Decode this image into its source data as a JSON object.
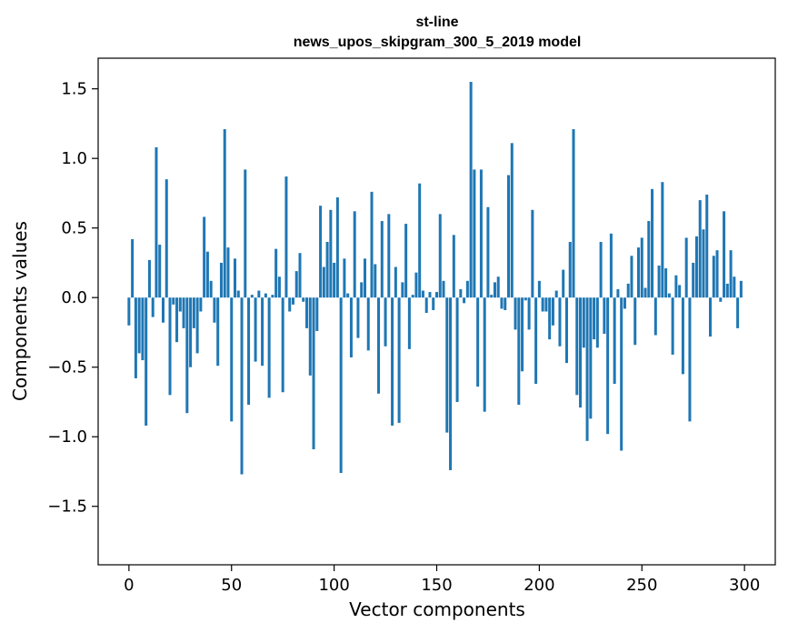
{
  "chart_data": {
    "type": "bar",
    "title_line1": "st-line",
    "title_line2": "news_upos_skipgram_300_5_2019 model",
    "xlabel": "Vector components",
    "ylabel": "Components values",
    "xlim": [
      -15,
      315
    ],
    "ylim": [
      -1.92,
      1.72
    ],
    "xticks": [
      0,
      50,
      100,
      150,
      200,
      250,
      300
    ],
    "yticks": [
      -1.5,
      -1.0,
      -0.5,
      0.0,
      0.5,
      1.0,
      1.5
    ],
    "xtick_labels": [
      "0",
      "50",
      "100",
      "150",
      "200",
      "250",
      "300"
    ],
    "ytick_labels": [
      "−1.5",
      "−1.0",
      "−0.5",
      "0.0",
      "0.5",
      "1.0",
      "1.5"
    ],
    "bar_color": "#1f77b4",
    "grid": false,
    "values": [
      -0.2,
      0.42,
      -0.58,
      -0.4,
      -0.45,
      -0.92,
      0.27,
      -0.14,
      1.08,
      0.38,
      -0.18,
      0.85,
      -0.7,
      -0.05,
      -0.32,
      -0.1,
      -0.22,
      -0.83,
      -0.5,
      -0.22,
      -0.4,
      -0.1,
      0.58,
      0.33,
      0.12,
      -0.18,
      -0.49,
      0.25,
      1.21,
      0.36,
      -0.89,
      0.28,
      0.05,
      -1.27,
      0.92,
      -0.77,
      0.02,
      -0.46,
      0.05,
      -0.49,
      0.03,
      -0.72,
      0.02,
      0.35,
      0.15,
      -0.68,
      0.87,
      -0.1,
      -0.05,
      0.19,
      0.32,
      -0.03,
      -0.22,
      -0.56,
      -1.09,
      -0.24,
      0.66,
      0.22,
      0.4,
      0.63,
      0.25,
      0.72,
      -1.26,
      0.28,
      0.03,
      -0.43,
      0.62,
      -0.29,
      0.11,
      0.28,
      -0.38,
      0.76,
      0.24,
      -0.69,
      0.55,
      -0.35,
      0.6,
      -0.92,
      0.22,
      -0.9,
      0.11,
      0.53,
      -0.37,
      0.02,
      0.18,
      0.82,
      0.05,
      -0.11,
      0.04,
      -0.09,
      0.04,
      0.6,
      0.12,
      -0.97,
      -1.24,
      0.45,
      -0.75,
      0.06,
      -0.04,
      0.12,
      1.55,
      0.92,
      -0.64,
      0.92,
      -0.82,
      0.65,
      0.02,
      0.11,
      0.15,
      -0.08,
      -0.09,
      0.88,
      1.11,
      -0.23,
      -0.77,
      -0.53,
      -0.02,
      -0.23,
      0.63,
      -0.62,
      0.12,
      -0.1,
      -0.1,
      -0.3,
      -0.2,
      0.05,
      -0.35,
      0.2,
      -0.47,
      0.4,
      1.21,
      -0.7,
      -0.79,
      -0.36,
      -1.03,
      -0.87,
      -0.3,
      -0.36,
      0.4,
      -0.26,
      -0.98,
      0.46,
      -0.62,
      0.06,
      -1.1,
      -0.08,
      0.1,
      0.3,
      -0.34,
      0.36,
      0.43,
      0.07,
      0.55,
      0.78,
      -0.27,
      0.23,
      0.83,
      0.21,
      0.03,
      -0.41,
      0.16,
      0.09,
      -0.55,
      0.43,
      -0.89,
      0.25,
      0.44,
      0.7,
      0.49,
      0.74,
      -0.28,
      0.3,
      0.34,
      -0.03,
      0.62,
      0.1,
      0.34,
      0.15,
      -0.22,
      0.12
    ]
  }
}
